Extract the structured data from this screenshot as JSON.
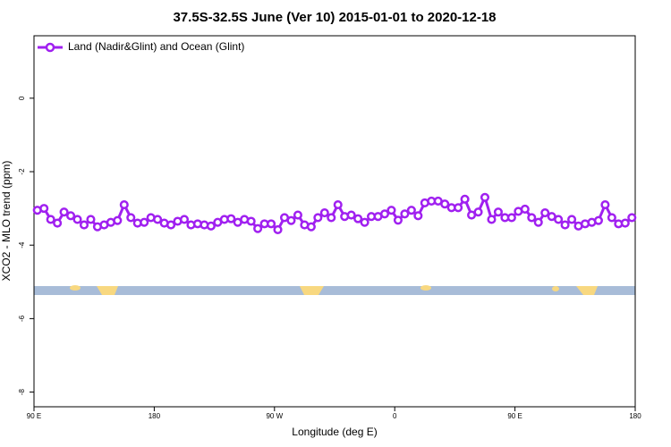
{
  "chart_data": {
    "type": "line",
    "title": "37.5S-32.5S June (Ver 10)   2015-01-01 to 2020-12-18",
    "xlabel": "Longitude (deg E)",
    "ylabel": "XCO2 - MLO trend (ppm)",
    "xlim": [
      90,
      540
    ],
    "xticks": [
      {
        "value": 90,
        "label": "90 E"
      },
      {
        "value": 180,
        "label": "180"
      },
      {
        "value": 270,
        "label": "90 W"
      },
      {
        "value": 360,
        "label": "0"
      },
      {
        "value": 450,
        "label": "90 E"
      },
      {
        "value": 540,
        "label": "180"
      }
    ],
    "ylim": [
      -8.4,
      1.7
    ],
    "yticks": [
      0,
      -2,
      -4,
      -6,
      -8
    ],
    "legend": "top-left",
    "x": [
      92.5,
      97.5,
      102.5,
      107.5,
      112.5,
      117.5,
      122.5,
      127.5,
      132.5,
      137.5,
      142.5,
      147.5,
      152.5,
      157.5,
      162.5,
      167.5,
      172.5,
      177.5,
      182.5,
      187.5,
      192.5,
      197.5,
      202.5,
      207.5,
      212.5,
      217.5,
      222.5,
      227.5,
      232.5,
      237.5,
      242.5,
      247.5,
      252.5,
      257.5,
      262.5,
      267.5,
      272.5,
      277.5,
      282.5,
      287.5,
      292.5,
      297.5,
      302.5,
      307.5,
      312.5,
      317.5,
      322.5,
      327.5,
      332.5,
      337.5,
      342.5,
      347.5,
      352.5,
      357.5,
      362.5,
      367.5,
      372.5,
      377.5,
      382.5,
      387.5,
      392.5,
      397.5,
      402.5,
      407.5,
      412.5,
      417.5,
      422.5,
      427.5,
      432.5,
      437.5,
      442.5,
      447.5,
      452.5,
      457.5,
      462.5,
      467.5,
      472.5,
      477.5,
      482.5,
      487.5,
      492.5,
      497.5,
      502.5,
      507.5,
      512.5,
      517.5,
      522.5,
      527.5,
      532.5,
      537.5
    ],
    "series": [
      {
        "name": "Land (Nadir&Glint) and Ocean (Glint)",
        "color": "#a020f0",
        "values": [
          -3.05,
          -3.0,
          -3.3,
          -3.4,
          -3.1,
          -3.2,
          -3.3,
          -3.45,
          -3.3,
          -3.5,
          -3.45,
          -3.38,
          -3.33,
          -2.9,
          -3.25,
          -3.4,
          -3.38,
          -3.25,
          -3.3,
          -3.4,
          -3.45,
          -3.35,
          -3.3,
          -3.45,
          -3.42,
          -3.45,
          -3.48,
          -3.38,
          -3.3,
          -3.28,
          -3.38,
          -3.3,
          -3.35,
          -3.55,
          -3.42,
          -3.42,
          -3.58,
          -3.25,
          -3.33,
          -3.18,
          -3.45,
          -3.5,
          -3.25,
          -3.12,
          -3.25,
          -2.9,
          -3.22,
          -3.18,
          -3.28,
          -3.38,
          -3.22,
          -3.22,
          -3.15,
          -3.05,
          -3.32,
          -3.15,
          -3.05,
          -3.2,
          -2.85,
          -2.8,
          -2.8,
          -2.88,
          -2.98,
          -2.98,
          -2.75,
          -3.18,
          -3.1,
          -2.7,
          -3.3,
          -3.1,
          -3.25,
          -3.25,
          -3.08,
          -3.02,
          -3.25,
          -3.38,
          -3.12,
          -3.22,
          -3.3,
          -3.45,
          -3.3,
          -3.48,
          -3.42,
          -3.38,
          -3.33,
          -2.9,
          -3.25,
          -3.42,
          -3.4,
          -3.25
        ]
      }
    ]
  }
}
